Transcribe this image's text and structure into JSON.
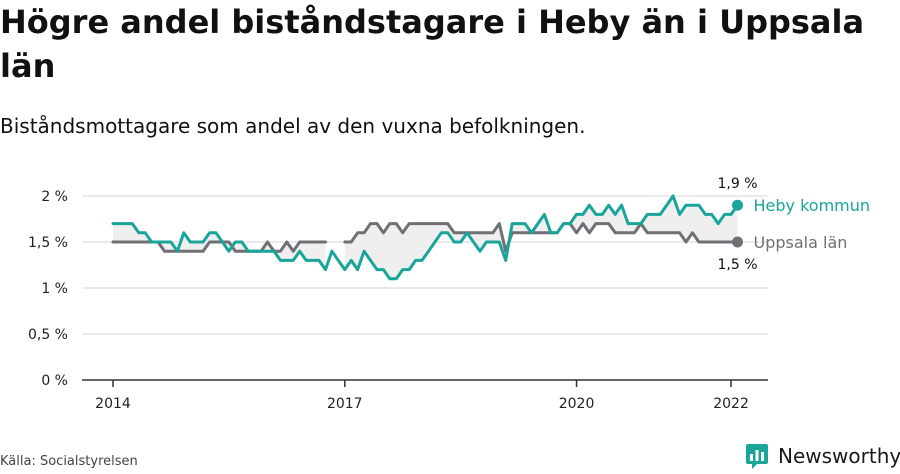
{
  "header": {
    "title": "Högre andel biståndstagare i Heby än i Uppsala län",
    "subtitle": "Biståndsmottagare som andel av den vuxna befolkningen."
  },
  "footer": {
    "source": "Källa: Socialstyrelsen",
    "brand": "Newsworthy"
  },
  "colors": {
    "heby": "#1aa59a",
    "uppsala": "#6f6f75",
    "fill": "#efefef",
    "grid": "#d6d6d6"
  },
  "chart_data": {
    "type": "line",
    "x_unit": "month index (0 = Jan 2014)",
    "ylim": [
      0,
      2.0
    ],
    "yticks": [
      {
        "value": 0,
        "label": "0 %"
      },
      {
        "value": 0.5,
        "label": "0,5 %"
      },
      {
        "value": 1,
        "label": "1 %"
      },
      {
        "value": 1.5,
        "label": "1,5 %"
      },
      {
        "value": 2,
        "label": "2 %"
      }
    ],
    "xticks": [
      {
        "value": 0,
        "label": "2014"
      },
      {
        "value": 36,
        "label": "2017"
      },
      {
        "value": 72,
        "label": "2020"
      },
      {
        "value": 96,
        "label": "2022"
      }
    ],
    "series": [
      {
        "name": "Heby kommun",
        "color": "#1aa59a",
        "end_label": "1,9 %",
        "values": [
          1.7,
          1.7,
          1.7,
          1.7,
          1.6,
          1.6,
          1.5,
          1.5,
          1.5,
          1.5,
          1.4,
          1.6,
          1.5,
          1.5,
          1.5,
          1.6,
          1.6,
          1.5,
          1.4,
          1.5,
          1.5,
          1.4,
          1.4,
          1.4,
          1.4,
          1.4,
          1.3,
          1.3,
          1.3,
          1.4,
          1.3,
          1.3,
          1.3,
          1.2,
          1.4,
          1.3,
          1.2,
          1.3,
          1.2,
          1.4,
          1.3,
          1.2,
          1.2,
          1.1,
          1.1,
          1.2,
          1.2,
          1.3,
          1.3,
          1.4,
          1.5,
          1.6,
          1.6,
          1.5,
          1.5,
          1.6,
          1.5,
          1.4,
          1.5,
          1.5,
          1.5,
          1.3,
          1.7,
          1.7,
          1.7,
          1.6,
          1.7,
          1.8,
          1.6,
          1.6,
          1.7,
          1.7,
          1.8,
          1.8,
          1.9,
          1.8,
          1.8,
          1.9,
          1.8,
          1.9,
          1.7,
          1.7,
          1.7,
          1.8,
          1.8,
          1.8,
          1.9,
          2.0,
          1.8,
          1.9,
          1.9,
          1.9,
          1.8,
          1.8,
          1.7,
          1.8,
          1.8,
          1.9
        ]
      },
      {
        "name": "Uppsala län",
        "color": "#6f6f75",
        "end_label": "1,5 %",
        "values": [
          1.5,
          1.5,
          1.5,
          1.5,
          1.5,
          1.5,
          1.5,
          1.5,
          1.4,
          1.4,
          1.4,
          1.4,
          1.4,
          1.4,
          1.4,
          1.5,
          1.5,
          1.5,
          1.5,
          1.4,
          1.4,
          1.4,
          1.4,
          1.4,
          1.5,
          1.4,
          1.4,
          1.5,
          1.4,
          1.5,
          1.5,
          1.5,
          1.5,
          1.5,
          null,
          null,
          1.5,
          1.5,
          1.6,
          1.6,
          1.7,
          1.7,
          1.6,
          1.7,
          1.7,
          1.6,
          1.7,
          1.7,
          1.7,
          1.7,
          1.7,
          1.7,
          1.7,
          1.6,
          1.6,
          1.6,
          1.6,
          1.6,
          1.6,
          1.6,
          1.7,
          1.4,
          1.6,
          1.6,
          1.6,
          1.6,
          1.6,
          1.6,
          1.6,
          1.6,
          1.7,
          1.7,
          1.6,
          1.7,
          1.6,
          1.7,
          1.7,
          1.7,
          1.6,
          1.6,
          1.6,
          1.6,
          1.7,
          1.6,
          1.6,
          1.6,
          1.6,
          1.6,
          1.6,
          1.5,
          1.6,
          1.5,
          1.5,
          1.5,
          1.5,
          1.5,
          1.5,
          1.5
        ]
      }
    ]
  }
}
